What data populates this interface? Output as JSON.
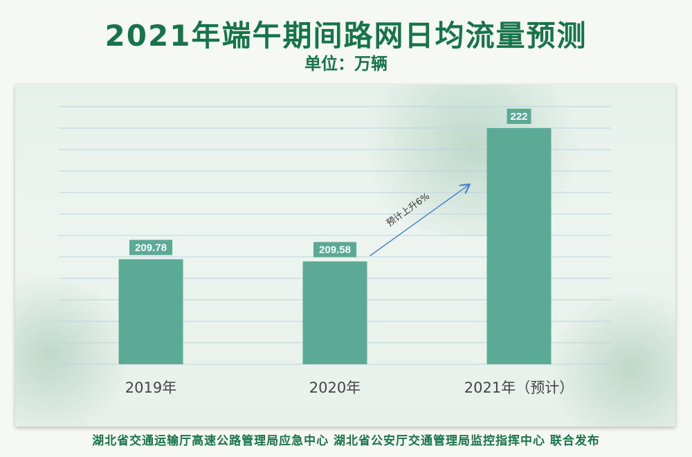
{
  "header": {
    "title": "2021年端午期间路网日均流量预测",
    "subtitle": "单位：万辆"
  },
  "chart_data": {
    "type": "bar",
    "categories": [
      "2019年",
      "2020年",
      "2021年（预计）"
    ],
    "values": [
      209.78,
      209.58,
      222
    ],
    "value_labels": [
      "209.78",
      "209.58",
      "222"
    ],
    "ylim": [
      200,
      224
    ],
    "grid": true,
    "bar_color": "#5aaa96",
    "annotation": {
      "text": "预计上升6%",
      "from": "2020年",
      "to": "2021年（预计）"
    }
  },
  "footer": {
    "text": "湖北省交通运输厅高速公路管理局应急中心 湖北省公安厅交通管理局监控指挥中心 联合发布"
  },
  "colors": {
    "title": "#17744a",
    "bar": "#5aaa96",
    "arrow": "#4a82c8",
    "grid": "#b9d2e6"
  }
}
